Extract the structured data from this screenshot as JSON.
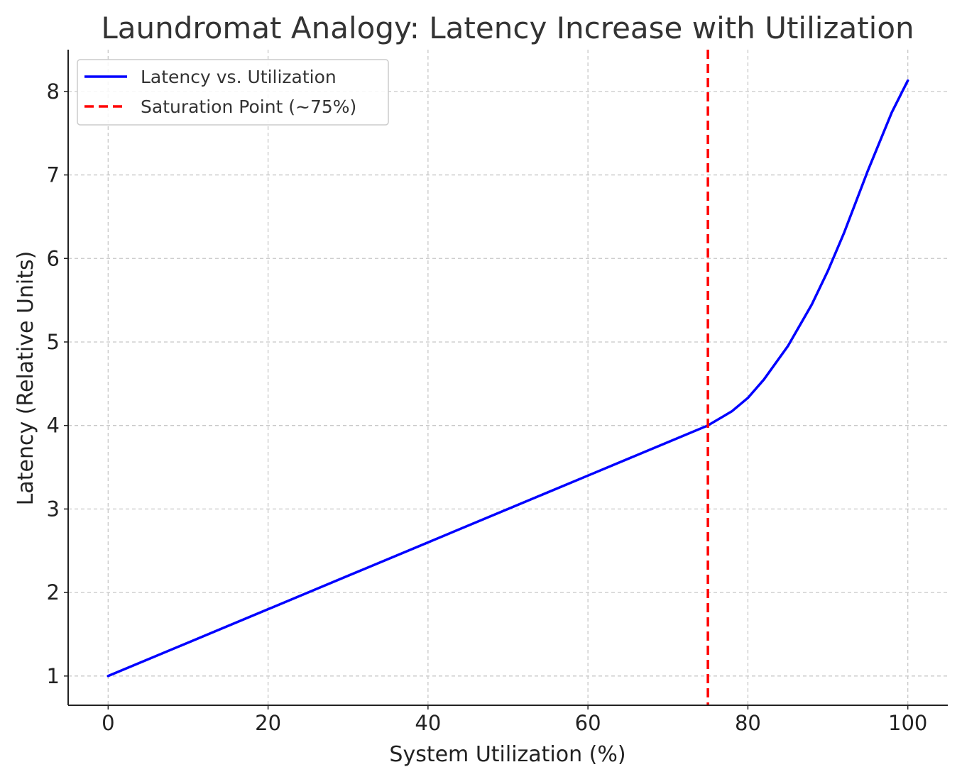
{
  "chart_data": {
    "type": "line",
    "title": "Laundromat Analogy: Latency Increase with Utilization",
    "xlabel": "System Utilization (%)",
    "ylabel": "Latency (Relative Units)",
    "xlim": [
      -5,
      105
    ],
    "ylim": [
      0.65,
      8.5
    ],
    "x_ticks": [
      0,
      20,
      40,
      60,
      80,
      100
    ],
    "y_ticks": [
      1,
      2,
      3,
      4,
      5,
      6,
      7,
      8
    ],
    "grid": true,
    "legend_position": "top-left",
    "series": [
      {
        "name": "Latency vs. Utilization",
        "color": "#0000ff",
        "style": "solid",
        "x": [
          0,
          10,
          20,
          30,
          40,
          50,
          60,
          70,
          75,
          78,
          80,
          82,
          85,
          88,
          90,
          92,
          95,
          98,
          100
        ],
        "y": [
          1.0,
          1.4,
          1.8,
          2.2,
          2.6,
          3.0,
          3.4,
          3.8,
          4.0,
          4.17,
          4.33,
          4.55,
          4.95,
          5.45,
          5.85,
          6.3,
          7.05,
          7.75,
          8.13
        ]
      }
    ],
    "vlines": [
      {
        "name": "Saturation Point (~75%)",
        "x": 75,
        "color": "#ff0000",
        "style": "dashed"
      }
    ]
  }
}
